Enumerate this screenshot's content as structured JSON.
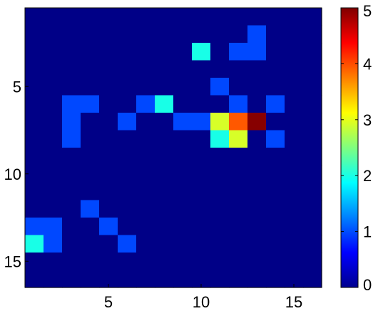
{
  "chart_data": {
    "type": "heatmap",
    "colormap": "jet",
    "x_ticks": [
      "5",
      "10",
      "15"
    ],
    "x_tick_values": [
      5,
      10,
      15
    ],
    "y_ticks": [
      "5",
      "10",
      "15"
    ],
    "y_tick_values": [
      5,
      10,
      15
    ],
    "colorbar_ticks": [
      "0",
      "1",
      "2",
      "3",
      "4",
      "5"
    ],
    "colorbar_tick_values": [
      0,
      1,
      2,
      3,
      4,
      5
    ],
    "clim": [
      0,
      5
    ],
    "rows": 16,
    "cols": 16,
    "xlim": [
      0.5,
      16.5
    ],
    "ylim": [
      0.5,
      16.5
    ],
    "y_axis_direction": "top-to-bottom",
    "colorbar_location": "right",
    "grid": false,
    "values": [
      [
        0,
        0,
        0,
        0,
        0,
        0,
        0,
        0,
        0,
        0,
        0,
        0,
        0,
        0,
        0,
        0
      ],
      [
        0,
        0,
        0,
        0,
        0,
        0,
        0,
        0,
        0,
        0,
        0,
        0,
        1,
        0,
        0,
        0
      ],
      [
        0,
        0,
        0,
        0,
        0,
        0,
        0,
        0,
        0,
        2,
        0,
        1,
        1,
        0,
        0,
        0
      ],
      [
        0,
        0,
        0,
        0,
        0,
        0,
        0,
        0,
        0,
        0,
        0,
        0,
        0,
        0,
        0,
        0
      ],
      [
        0,
        0,
        0,
        0,
        0,
        0,
        0,
        0,
        0,
        0,
        1,
        0,
        0,
        0,
        0,
        0
      ],
      [
        0,
        0,
        1,
        1,
        0,
        0,
        1,
        2,
        0,
        0,
        0,
        1,
        0,
        1,
        0,
        0
      ],
      [
        0,
        0,
        1,
        0,
        0,
        1,
        0,
        0,
        1,
        1,
        3,
        4,
        5,
        0,
        0,
        0
      ],
      [
        0,
        0,
        1,
        0,
        0,
        0,
        0,
        0,
        0,
        0,
        2,
        3,
        0,
        1,
        0,
        0
      ],
      [
        0,
        0,
        0,
        0,
        0,
        0,
        0,
        0,
        0,
        0,
        0,
        0,
        0,
        0,
        0,
        0
      ],
      [
        0,
        0,
        0,
        0,
        0,
        0,
        0,
        0,
        0,
        0,
        0,
        0,
        0,
        0,
        0,
        0
      ],
      [
        0,
        0,
        0,
        0,
        0,
        0,
        0,
        0,
        0,
        0,
        0,
        0,
        0,
        0,
        0,
        0
      ],
      [
        0,
        0,
        0,
        1,
        0,
        0,
        0,
        0,
        0,
        0,
        0,
        0,
        0,
        0,
        0,
        0
      ],
      [
        1,
        1,
        0,
        0,
        1,
        0,
        0,
        0,
        0,
        0,
        0,
        0,
        0,
        0,
        0,
        0
      ],
      [
        2,
        1,
        0,
        0,
        0,
        1,
        0,
        0,
        0,
        0,
        0,
        0,
        0,
        0,
        0,
        0
      ],
      [
        0,
        0,
        0,
        0,
        0,
        0,
        0,
        0,
        0,
        0,
        0,
        0,
        0,
        0,
        0,
        0
      ],
      [
        0,
        0,
        0,
        0,
        0,
        0,
        0,
        0,
        0,
        0,
        0,
        0,
        0,
        0,
        0,
        0
      ]
    ]
  }
}
